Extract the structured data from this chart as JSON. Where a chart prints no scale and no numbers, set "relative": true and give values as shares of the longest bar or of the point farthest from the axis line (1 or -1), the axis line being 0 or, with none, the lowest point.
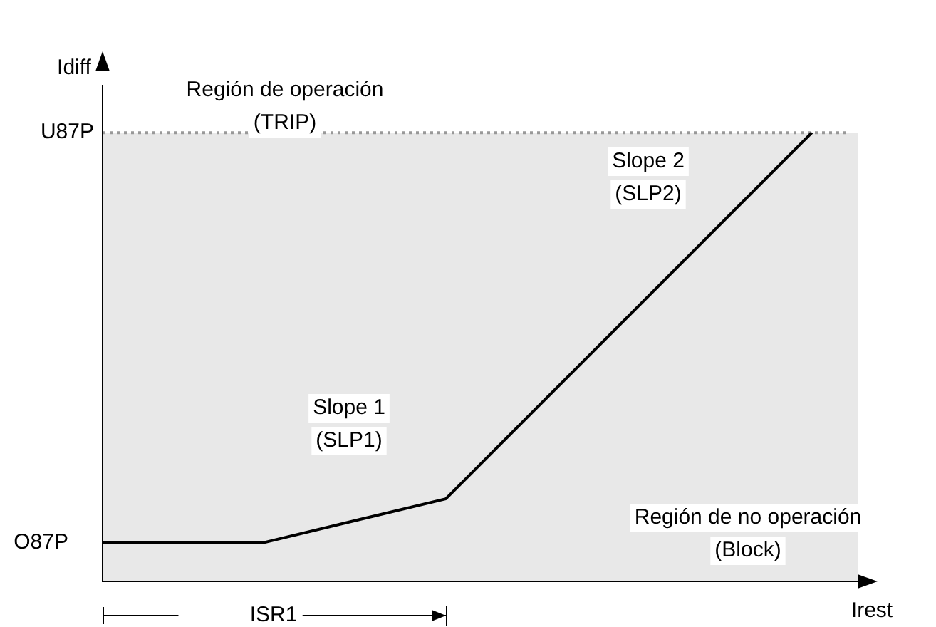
{
  "chart_data": {
    "type": "line",
    "relative": true,
    "xlabel": "Irest",
    "ylabel": "Idiff",
    "marker": "none",
    "line_style": "solid",
    "categories": [
      null,
      null,
      null,
      null,
      null,
      null,
      null,
      null,
      null,
      null,
      null,
      null,
      null,
      null,
      null,
      null,
      null,
      null,
      null,
      null,
      null,
      null,
      null,
      null,
      null,
      null,
      null,
      null,
      null,
      null,
      null,
      null,
      null,
      null
    ],
    "series": [
      {
        "color": "#000000",
        "values": [
          0.086,
          null,
          null,
          null,
          null,
          null,
          null,
          0.086,
          null,
          null,
          null,
          null,
          null,
          null,
          null,
          0.184,
          null,
          null,
          null,
          null,
          null,
          null,
          null,
          null,
          null,
          null,
          null,
          null,
          null,
          null,
          null,
          1,
          null,
          null
        ]
      }
    ],
    "ref_lines": [
      {
        "axis": "y",
        "value": 1,
        "label": "U87P",
        "color": "#999999",
        "line_style": "dotted"
      }
    ],
    "bands": [
      {
        "axis": "y",
        "from": 0,
        "to": 1,
        "color": "#e8e8e8"
      }
    ],
    "annotations": [
      "O87P",
      "Región de operación\n(TRIP)",
      "Slope 2\n(SLP2)",
      "Slope 1\n(SLP1)",
      "Región de no operación\n(Block)",
      "ISR1"
    ]
  }
}
